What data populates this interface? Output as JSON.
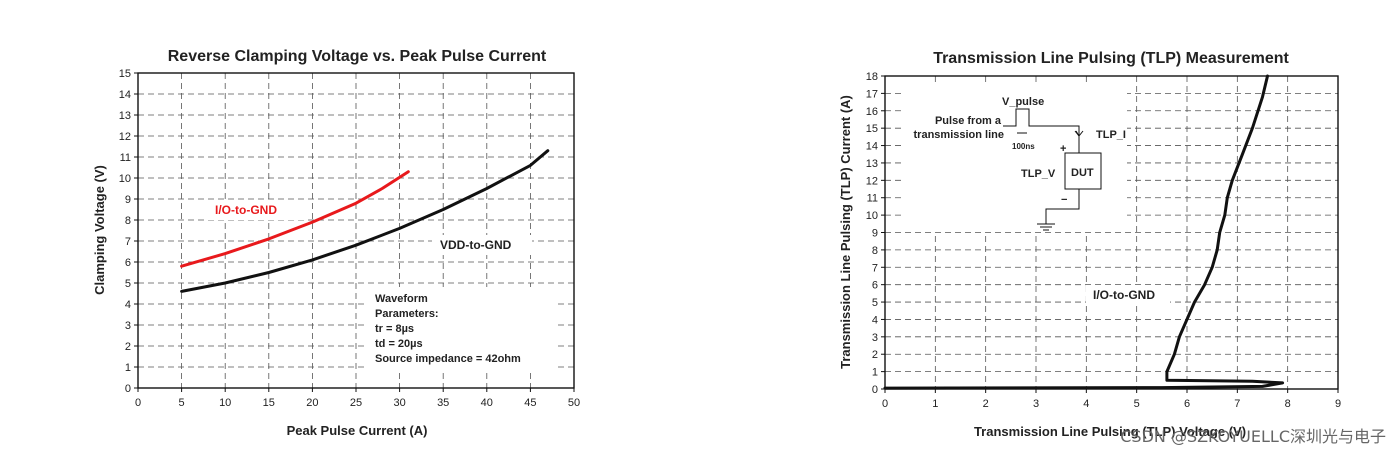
{
  "chart_data": [
    {
      "type": "line",
      "title": "Reverse Clamping Voltage  vs. Peak Pulse Current",
      "xlabel": "Peak Pulse Current (A)",
      "ylabel": "Clamping Voltage (V)",
      "xlim": [
        0,
        50
      ],
      "ylim": [
        0,
        15
      ],
      "xticks": [
        0,
        5,
        10,
        15,
        20,
        25,
        30,
        35,
        40,
        45,
        50
      ],
      "yticks": [
        0,
        1,
        2,
        3,
        4,
        5,
        6,
        7,
        8,
        9,
        10,
        11,
        12,
        13,
        14,
        15
      ],
      "grid": true,
      "series": [
        {
          "name": "I/O-to-GND",
          "color": "#e8191c",
          "x": [
            5,
            10,
            15,
            20,
            25,
            28,
            31
          ],
          "y": [
            5.8,
            6.4,
            7.1,
            7.9,
            8.8,
            9.5,
            10.3
          ]
        },
        {
          "name": "VDD-to-GND",
          "color": "#111111",
          "x": [
            5,
            10,
            15,
            20,
            25,
            30,
            35,
            40,
            45,
            47
          ],
          "y": [
            4.6,
            5.0,
            5.5,
            6.1,
            6.8,
            7.6,
            8.5,
            9.5,
            10.6,
            11.3
          ]
        }
      ],
      "annotation": {
        "lines": [
          "Waveform",
          "Parameters:",
          "tr = 8µs",
          "td = 20µs",
          "Source impedance = 42ohm"
        ]
      }
    },
    {
      "type": "line",
      "title": "Transmission Line Pulsing (TLP) Measurement",
      "xlabel": "Transmission Line Pulsing (TLP) Voltage (V)",
      "ylabel": "Transmission Line Pulsing (TLP) Current (A)",
      "xlim": [
        0,
        9
      ],
      "ylim": [
        0,
        18
      ],
      "xticks": [
        0,
        1,
        2,
        3,
        4,
        5,
        6,
        7,
        8,
        9
      ],
      "yticks": [
        0,
        1,
        2,
        3,
        4,
        5,
        6,
        7,
        8,
        9,
        10,
        11,
        12,
        13,
        14,
        15,
        16,
        17,
        18
      ],
      "grid": true,
      "series": [
        {
          "name": "I/O-to-GND",
          "color": "#111111",
          "x": [
            0,
            5.5,
            7.5,
            7.9,
            7.3,
            5.6,
            5.6,
            5.75,
            5.85,
            6.0,
            6.15,
            6.35,
            6.5,
            6.6,
            6.65,
            6.75,
            6.8,
            6.9,
            7.1,
            7.3,
            7.5,
            7.6
          ],
          "y": [
            0.05,
            0.08,
            0.15,
            0.35,
            0.45,
            0.5,
            1.0,
            2.0,
            3.0,
            4.0,
            5.0,
            6.0,
            7.0,
            8.0,
            9.0,
            10.0,
            11.0,
            12.0,
            13.5,
            15.0,
            16.8,
            18.0
          ]
        }
      ],
      "inset": {
        "v_pulse": "V_pulse",
        "pulse_from_1": "Pulse from a",
        "pulse_from_2": "transmission line",
        "width": "100ns",
        "tlp_i": "TLP_I",
        "tlp_v": "TLP_V",
        "dut": "DUT",
        "plus": "+",
        "minus": "−"
      }
    }
  ],
  "watermark": "CSDN @SZKOYUELLC深圳光与电子"
}
